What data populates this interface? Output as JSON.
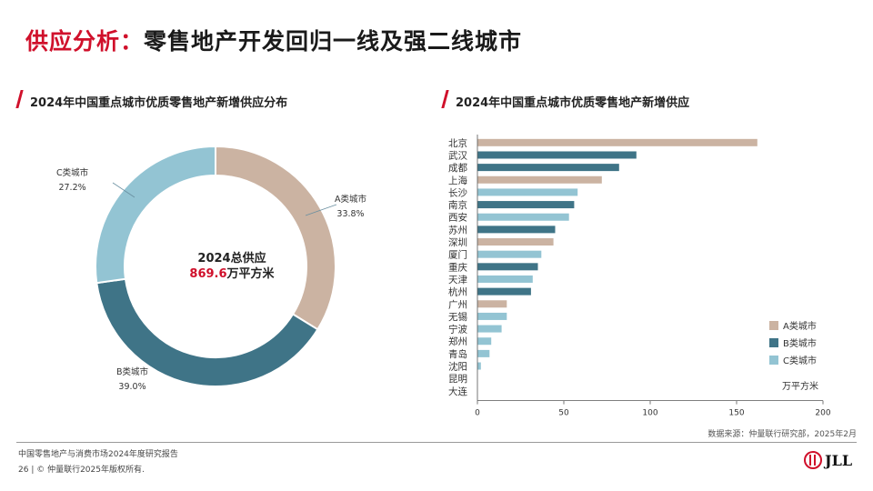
{
  "page": {
    "title_accent": "供应分析：",
    "title_rest": "零售地产开发回归一线及强二线城市"
  },
  "colors": {
    "a_city": "#cbb3a2",
    "b_city": "#3f7487",
    "c_city": "#93c4d3",
    "accent": "#d0102b"
  },
  "left_section": {
    "title": "2024年中国重点城市优质零售地产新增供应分布"
  },
  "right_section": {
    "title": "2024年中国重点城市优质零售地产新增供应"
  },
  "source": "数据来源：仲量联行研究部，2025年2月",
  "footer": {
    "report": "中国零售地产与消费市场2024年度研究报告",
    "copyright": "26 | © 仲量联行2025年版权所有."
  },
  "logo": {
    "text": "JLL"
  },
  "chart_data": [
    {
      "type": "pie",
      "donut": true,
      "title": "2024年中国重点城市优质零售地产新增供应分布",
      "center_title": "2024总供应",
      "center_value": "869.6",
      "center_unit": "万平方米",
      "slices": [
        {
          "label": "A类城市",
          "percent": 33.8,
          "display": "33.8%",
          "color": "#cbb3a2"
        },
        {
          "label": "B类城市",
          "percent": 39.0,
          "display": "39.0%",
          "color": "#3f7487"
        },
        {
          "label": "C类城市",
          "percent": 27.2,
          "display": "27.2%",
          "color": "#93c4d3"
        }
      ]
    },
    {
      "type": "bar",
      "orientation": "horizontal",
      "title": "2024年中国重点城市优质零售地产新增供应",
      "unit": "万平方米",
      "xlim": [
        0,
        200
      ],
      "xticks": [
        0,
        50,
        100,
        150,
        200
      ],
      "categories": [
        "北京",
        "武汉",
        "成都",
        "上海",
        "长沙",
        "南京",
        "西安",
        "苏州",
        "深圳",
        "厦门",
        "重庆",
        "天津",
        "杭州",
        "广州",
        "无锡",
        "宁波",
        "郑州",
        "青岛",
        "沈阳",
        "昆明",
        "大连"
      ],
      "values": [
        162,
        92,
        82,
        72,
        58,
        56,
        53,
        45,
        44,
        37,
        35,
        32,
        31,
        17,
        17,
        14,
        8,
        7,
        2,
        0,
        0
      ],
      "tiers": [
        "A",
        "B",
        "B",
        "A",
        "C",
        "B",
        "C",
        "B",
        "A",
        "C",
        "B",
        "C",
        "B",
        "A",
        "C",
        "C",
        "C",
        "C",
        "C",
        "C",
        "B"
      ],
      "legend": [
        {
          "tier": "A",
          "label": "A类城市"
        },
        {
          "tier": "B",
          "label": "B类城市"
        },
        {
          "tier": "C",
          "label": "C类城市"
        }
      ],
      "legend_position": "right",
      "grid": false
    }
  ]
}
